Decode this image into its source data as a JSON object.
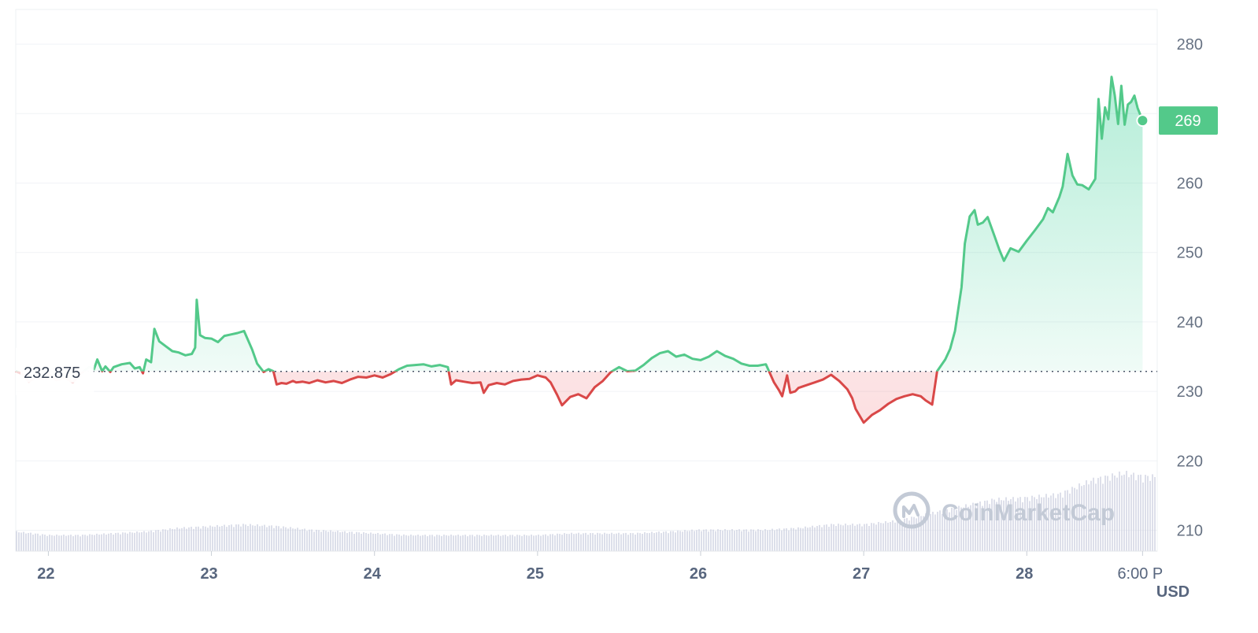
{
  "chart_data": {
    "type": "line",
    "currency": "USD",
    "watermark": "CoinMarketCap",
    "reference_price": 232.875,
    "reference_label": "232.875",
    "current_price": 269,
    "current_price_label": "269",
    "ylim": [
      207,
      285
    ],
    "yticks": [
      280,
      270,
      260,
      250,
      240,
      230,
      220,
      210
    ],
    "ytick_labels": [
      "280",
      "",
      "260",
      "250",
      "240",
      "230",
      "220",
      "210"
    ],
    "xlim": [
      21.8,
      28.8
    ],
    "xticks": [
      {
        "x": 22,
        "label": "22",
        "kind": "day"
      },
      {
        "x": 23,
        "label": "23",
        "kind": "day"
      },
      {
        "x": 24,
        "label": "24",
        "kind": "day"
      },
      {
        "x": 25,
        "label": "25",
        "kind": "day"
      },
      {
        "x": 26,
        "label": "26",
        "kind": "day"
      },
      {
        "x": 27,
        "label": "27",
        "kind": "day"
      },
      {
        "x": 28,
        "label": "28",
        "kind": "day"
      },
      {
        "x": 28.71,
        "label": "6:00 P",
        "kind": "time"
      }
    ],
    "colors": {
      "up": "#16c784",
      "down": "#ea3943",
      "line_up": "#53c98a",
      "line_down": "#d94848",
      "volume": "#c5c9dc",
      "label_bg": "#53c98a"
    },
    "price": {
      "x": [
        21.8,
        21.84,
        21.88,
        21.92,
        21.96,
        22.0,
        22.05,
        22.1,
        22.15,
        22.2,
        22.25,
        22.28,
        22.3,
        22.33,
        22.35,
        22.38,
        22.4,
        22.45,
        22.5,
        22.53,
        22.56,
        22.58,
        22.6,
        22.63,
        22.65,
        22.68,
        22.72,
        22.76,
        22.8,
        22.84,
        22.88,
        22.9,
        22.91,
        22.93,
        22.96,
        23.0,
        23.04,
        23.08,
        23.12,
        23.16,
        23.2,
        23.25,
        23.28,
        23.32,
        23.35,
        23.38,
        23.4,
        23.43,
        23.46,
        23.5,
        23.52,
        23.56,
        23.6,
        23.65,
        23.7,
        23.75,
        23.8,
        23.85,
        23.9,
        23.95,
        24.0,
        24.05,
        24.1,
        24.15,
        24.2,
        24.25,
        24.3,
        24.35,
        24.4,
        24.45,
        24.47,
        24.5,
        24.55,
        24.6,
        24.65,
        24.67,
        24.7,
        24.75,
        24.8,
        24.85,
        24.9,
        24.95,
        25.0,
        25.05,
        25.08,
        25.12,
        25.15,
        25.2,
        25.25,
        25.3,
        25.35,
        25.4,
        25.45,
        25.5,
        25.55,
        25.6,
        25.65,
        25.7,
        25.75,
        25.8,
        25.85,
        25.9,
        25.95,
        26.0,
        26.05,
        26.1,
        26.15,
        26.2,
        26.25,
        26.3,
        26.35,
        26.4,
        26.45,
        26.48,
        26.5,
        26.53,
        26.55,
        26.58,
        26.6,
        26.65,
        26.7,
        26.75,
        26.8,
        26.85,
        26.9,
        26.93,
        26.95,
        27.0,
        27.05,
        27.1,
        27.15,
        27.2,
        27.25,
        27.3,
        27.35,
        27.38,
        27.42,
        27.45,
        27.5,
        27.53,
        27.56,
        27.6,
        27.62,
        27.65,
        27.68,
        27.7,
        27.73,
        27.76,
        27.8,
        27.83,
        27.86,
        27.9,
        27.95,
        28.0,
        28.05,
        28.1,
        28.13,
        28.16,
        28.2,
        28.22,
        28.25,
        28.28,
        28.31,
        28.34,
        28.38,
        28.42,
        28.44,
        28.46,
        28.48,
        28.5,
        28.52,
        28.54,
        28.56,
        28.58,
        28.6,
        28.62,
        28.64,
        28.66,
        28.68,
        28.71
      ],
      "y": [
        232.9,
        232.5,
        231.4,
        232.0,
        231.8,
        232.5,
        231.6,
        232.0,
        231.3,
        232.6,
        233.5,
        233.2,
        234.6,
        232.9,
        233.6,
        232.8,
        233.5,
        233.9,
        234.1,
        233.3,
        233.5,
        232.6,
        234.6,
        234.2,
        239.0,
        237.2,
        236.5,
        235.8,
        235.6,
        235.2,
        235.4,
        236.3,
        243.2,
        238.1,
        237.7,
        237.6,
        237.1,
        238.0,
        238.2,
        238.4,
        238.7,
        236.0,
        234.0,
        232.8,
        233.2,
        232.9,
        231.0,
        231.2,
        231.1,
        231.5,
        231.3,
        231.4,
        231.2,
        231.6,
        231.3,
        231.5,
        231.2,
        231.7,
        232.1,
        232.0,
        232.3,
        232.0,
        232.5,
        233.2,
        233.7,
        233.8,
        233.9,
        233.6,
        233.8,
        233.5,
        231.0,
        231.6,
        231.4,
        231.2,
        231.3,
        229.8,
        230.9,
        231.2,
        231.0,
        231.5,
        231.7,
        231.8,
        232.3,
        232.0,
        231.3,
        229.5,
        228.0,
        229.2,
        229.6,
        229.0,
        230.6,
        231.5,
        232.8,
        233.5,
        232.9,
        233.0,
        233.8,
        234.8,
        235.5,
        235.8,
        235.0,
        235.3,
        234.7,
        234.5,
        235.0,
        235.8,
        235.1,
        234.7,
        234.0,
        233.7,
        233.7,
        233.9,
        231.3,
        230.2,
        229.3,
        232.3,
        229.8,
        230.0,
        230.5,
        230.9,
        231.3,
        231.7,
        232.4,
        231.5,
        230.3,
        229.0,
        227.5,
        225.5,
        226.6,
        227.3,
        228.2,
        228.9,
        229.3,
        229.6,
        229.3,
        228.7,
        228.1,
        232.9,
        234.6,
        236.1,
        238.7,
        245.0,
        251.3,
        255.2,
        256.1,
        254.0,
        254.3,
        255.1,
        252.5,
        250.5,
        248.8,
        250.6,
        250.1,
        251.7,
        253.2,
        254.8,
        256.4,
        255.8,
        258.0,
        259.5,
        264.2,
        261.1,
        259.8,
        259.7,
        259.1,
        260.6,
        272.1,
        266.4,
        270.9,
        269.2,
        275.3,
        272.6,
        268.5,
        274.0,
        268.4,
        271.3,
        271.7,
        272.6,
        270.8,
        269.0
      ]
    },
    "volume": {
      "x": [
        21.8,
        22.0,
        22.2,
        22.4,
        22.6,
        22.8,
        23.0,
        23.2,
        23.4,
        23.6,
        23.8,
        24.0,
        24.2,
        24.4,
        24.6,
        24.8,
        25.0,
        25.2,
        25.4,
        25.6,
        25.8,
        26.0,
        26.2,
        26.4,
        26.6,
        26.8,
        27.0,
        27.2,
        27.4,
        27.6,
        27.8,
        28.0,
        28.2,
        28.4,
        28.5,
        28.6,
        28.65,
        28.71
      ],
      "y": [
        0.11,
        0.09,
        0.09,
        0.1,
        0.11,
        0.13,
        0.14,
        0.15,
        0.14,
        0.12,
        0.11,
        0.1,
        0.09,
        0.09,
        0.09,
        0.09,
        0.09,
        0.1,
        0.1,
        0.1,
        0.11,
        0.12,
        0.12,
        0.12,
        0.13,
        0.15,
        0.15,
        0.17,
        0.21,
        0.25,
        0.29,
        0.3,
        0.32,
        0.4,
        0.42,
        0.44,
        0.43,
        0.42
      ]
    }
  }
}
